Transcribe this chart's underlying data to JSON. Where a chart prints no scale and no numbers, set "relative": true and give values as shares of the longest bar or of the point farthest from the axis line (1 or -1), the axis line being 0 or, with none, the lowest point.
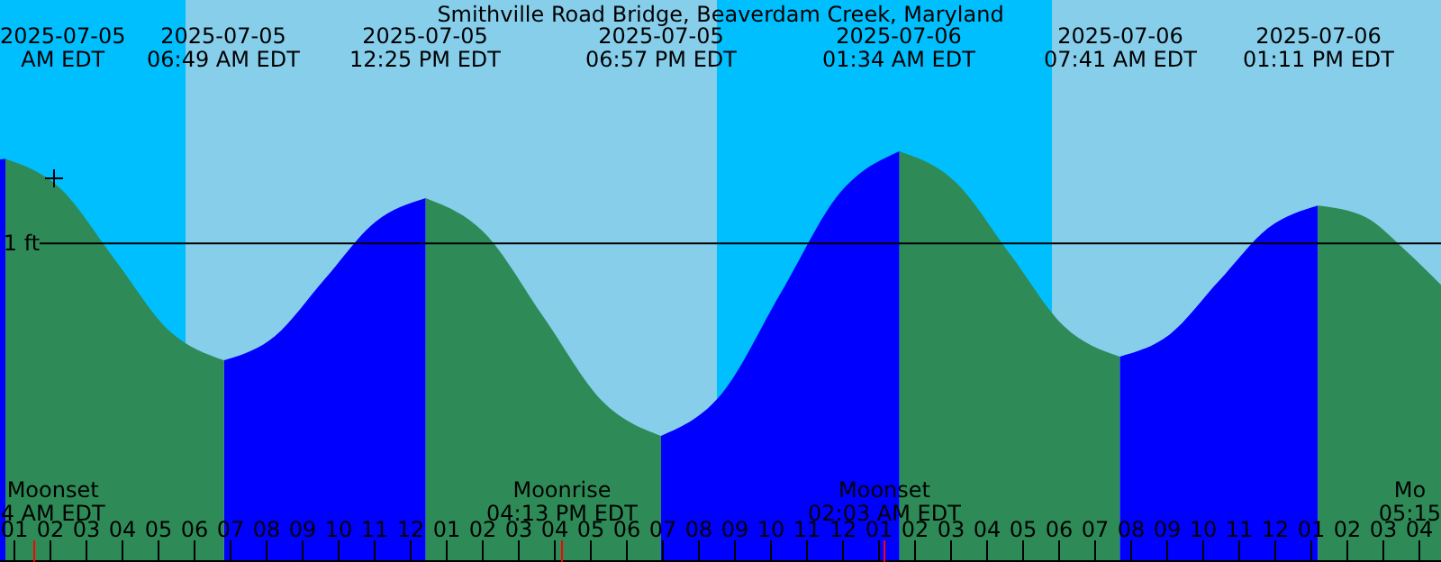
{
  "chart_data": {
    "type": "area",
    "title": "Smithville Road Bridge, Beaverdam Creek, Maryland",
    "relative": true,
    "x": [
      "2025-07-05T00:36",
      "2025-07-05T00:45",
      "2025-07-05T02:16",
      "2025-07-05T03:47",
      "2025-07-05T05:18",
      "2025-07-05T06:49",
      "2025-07-05T08:13",
      "2025-07-05T09:37",
      "2025-07-05T11:01",
      "2025-07-05T12:25",
      "2025-07-05T14:03",
      "2025-07-05T15:41",
      "2025-07-05T17:19",
      "2025-07-05T18:57",
      "2025-07-05T20:37",
      "2025-07-05T22:16",
      "2025-07-05T23:55",
      "2025-07-06T01:34",
      "2025-07-06T03:06",
      "2025-07-06T04:38",
      "2025-07-06T06:09",
      "2025-07-06T07:41",
      "2025-07-06T09:04",
      "2025-07-06T10:26",
      "2025-07-06T11:49",
      "2025-07-06T13:11",
      "2025-07-06T14:30",
      "2025-07-06T15:36",
      "2025-07-06T16:36"
    ],
    "series": [
      {
        "color": "#0000ff",
        "values": [
          0.98,
          0.982,
          null,
          null,
          null,
          0.491,
          0.549,
          0.689,
          0.828,
          0.886,
          null,
          null,
          null,
          0.307,
          0.408,
          0.654,
          0.899,
          1.0,
          null,
          null,
          null,
          0.5,
          0.554,
          0.684,
          0.814,
          0.868,
          null,
          null,
          null
        ]
      },
      {
        "color": "#2e8b57",
        "values": [
          null,
          0.982,
          0.91,
          0.737,
          0.563,
          0.491,
          null,
          null,
          null,
          0.886,
          0.801,
          0.597,
          0.392,
          0.307,
          null,
          null,
          null,
          1.0,
          0.927,
          0.75,
          0.573,
          0.5,
          null,
          null,
          null,
          0.868,
          0.84,
          0.76,
          0.675
        ]
      }
    ],
    "xlim": [
      "2025-07-05T00:36",
      "2025-07-06T16:36"
    ],
    "xticks": [
      {
        "value": "2025-07-05T01:00",
        "label": "01"
      },
      {
        "value": "2025-07-05T02:00",
        "label": "02"
      },
      {
        "value": "2025-07-05T03:00",
        "label": "03"
      },
      {
        "value": "2025-07-05T04:00",
        "label": "04"
      },
      {
        "value": "2025-07-05T05:00",
        "label": "05"
      },
      {
        "value": "2025-07-05T06:00",
        "label": "06"
      },
      {
        "value": "2025-07-05T07:00",
        "label": "07"
      },
      {
        "value": "2025-07-05T08:00",
        "label": "08"
      },
      {
        "value": "2025-07-05T09:00",
        "label": "09"
      },
      {
        "value": "2025-07-05T10:00",
        "label": "10"
      },
      {
        "value": "2025-07-05T11:00",
        "label": "11"
      },
      {
        "value": "2025-07-05T12:00",
        "label": "12"
      },
      {
        "value": "2025-07-05T13:00",
        "label": "01"
      },
      {
        "value": "2025-07-05T14:00",
        "label": "02"
      },
      {
        "value": "2025-07-05T15:00",
        "label": "03"
      },
      {
        "value": "2025-07-05T16:00",
        "label": "04"
      },
      {
        "value": "2025-07-05T17:00",
        "label": "05"
      },
      {
        "value": "2025-07-05T18:00",
        "label": "06"
      },
      {
        "value": "2025-07-05T19:00",
        "label": "07"
      },
      {
        "value": "2025-07-05T20:00",
        "label": "08"
      },
      {
        "value": "2025-07-05T21:00",
        "label": "09"
      },
      {
        "value": "2025-07-05T22:00",
        "label": "10"
      },
      {
        "value": "2025-07-05T23:00",
        "label": "11"
      },
      {
        "value": "2025-07-06T00:00",
        "label": "12"
      },
      {
        "value": "2025-07-06T01:00",
        "label": "01"
      },
      {
        "value": "2025-07-06T02:00",
        "label": "02"
      },
      {
        "value": "2025-07-06T03:00",
        "label": "03"
      },
      {
        "value": "2025-07-06T04:00",
        "label": "04"
      },
      {
        "value": "2025-07-06T05:00",
        "label": "05"
      },
      {
        "value": "2025-07-06T06:00",
        "label": "06"
      },
      {
        "value": "2025-07-06T07:00",
        "label": "07"
      },
      {
        "value": "2025-07-06T08:00",
        "label": "08"
      },
      {
        "value": "2025-07-06T09:00",
        "label": "09"
      },
      {
        "value": "2025-07-06T10:00",
        "label": "10"
      },
      {
        "value": "2025-07-06T11:00",
        "label": "11"
      },
      {
        "value": "2025-07-06T12:00",
        "label": "12"
      },
      {
        "value": "2025-07-06T13:00",
        "label": "01"
      },
      {
        "value": "2025-07-06T14:00",
        "label": "02"
      },
      {
        "value": "2025-07-06T15:00",
        "label": "03"
      },
      {
        "value": "2025-07-06T16:00",
        "label": "04"
      }
    ],
    "bands": [
      {
        "axis": "x",
        "from": "2025-07-05T00:36",
        "to": "2025-07-05T05:45",
        "color": "#00bfff"
      },
      {
        "axis": "x",
        "from": "2025-07-05T05:45",
        "to": "2025-07-05T20:30",
        "color": "#87ceeb"
      },
      {
        "axis": "x",
        "from": "2025-07-05T20:30",
        "to": "2025-07-06T05:48",
        "color": "#00bfff"
      },
      {
        "axis": "x",
        "from": "2025-07-06T05:48",
        "to": "2025-07-06T16:36",
        "color": "#87ceeb"
      }
    ],
    "ref_lines": [
      {
        "axis": "y",
        "value": 0.776,
        "label": "1 ft",
        "color": "#000000"
      }
    ],
    "annotations": [
      "2025-07-05\nAM EDT",
      "2025-07-05\n06:49 AM EDT",
      "2025-07-05\n12:25 PM EDT",
      "2025-07-05\n06:57 PM EDT",
      "2025-07-06\n01:34 AM EDT",
      "2025-07-06\n07:41 AM EDT",
      "2025-07-06\n01:11 PM EDT",
      "Moonset\n4 AM EDT",
      "Moonrise\n04:13 PM EDT",
      "Moonset\n02:03 AM EDT",
      "Mo\n05:15"
    ]
  }
}
